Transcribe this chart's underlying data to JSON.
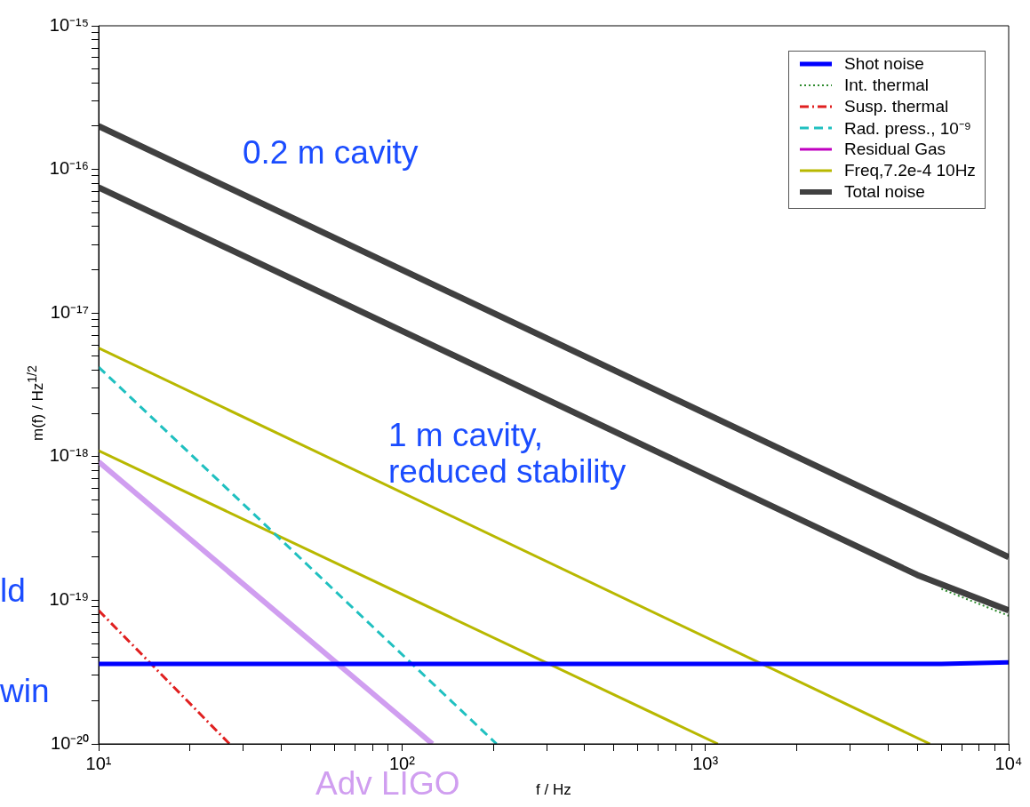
{
  "chart_data": {
    "type": "line",
    "xlabel": "f / Hz",
    "ylabel": "m(f) / Hz$^{1/2}$",
    "log": "xy",
    "grid": false,
    "legend": "top right",
    "xlim": [
      10,
      10000
    ],
    "ylim": [
      1e-20,
      1e-15
    ],
    "xticks": [
      {
        "value": 10,
        "label": "10¹"
      },
      {
        "value": 20,
        "label": null
      },
      {
        "value": 30,
        "label": null
      },
      {
        "value": 40,
        "label": null
      },
      {
        "value": 50,
        "label": null
      },
      {
        "value": 60,
        "label": null
      },
      {
        "value": 70,
        "label": null
      },
      {
        "value": 80,
        "label": null
      },
      {
        "value": 90,
        "label": null
      },
      {
        "value": 100,
        "label": "10²"
      },
      {
        "value": 200,
        "label": null
      },
      {
        "value": 300,
        "label": null
      },
      {
        "value": 400,
        "label": null
      },
      {
        "value": 500,
        "label": null
      },
      {
        "value": 600,
        "label": null
      },
      {
        "value": 700,
        "label": null
      },
      {
        "value": 800,
        "label": null
      },
      {
        "value": 900,
        "label": null
      },
      {
        "value": 1000,
        "label": "10³"
      },
      {
        "value": 2000,
        "label": null
      },
      {
        "value": 3000,
        "label": null
      },
      {
        "value": 4000,
        "label": null
      },
      {
        "value": 5000,
        "label": null
      },
      {
        "value": 6000,
        "label": null
      },
      {
        "value": 7000,
        "label": null
      },
      {
        "value": 8000,
        "label": null
      },
      {
        "value": 9000,
        "label": null
      },
      {
        "value": 10000,
        "label": "10⁴"
      }
    ],
    "yticks": [
      {
        "value": 1e-20,
        "label": "10⁻²⁰"
      },
      {
        "value": 2e-20,
        "label": null
      },
      {
        "value": 3e-20,
        "label": null
      },
      {
        "value": 4e-20,
        "label": null
      },
      {
        "value": 5e-20,
        "label": null
      },
      {
        "value": 6e-20,
        "label": null
      },
      {
        "value": 7e-20,
        "label": null
      },
      {
        "value": 8e-20,
        "label": null
      },
      {
        "value": 9e-20,
        "label": null
      },
      {
        "value": 1e-19,
        "label": "10⁻¹⁹"
      },
      {
        "value": 2e-19,
        "label": null
      },
      {
        "value": 3e-19,
        "label": null
      },
      {
        "value": 4e-19,
        "label": null
      },
      {
        "value": 5e-19,
        "label": null
      },
      {
        "value": 6e-19,
        "label": null
      },
      {
        "value": 7e-19,
        "label": null
      },
      {
        "value": 8e-19,
        "label": null
      },
      {
        "value": 9e-19,
        "label": null
      },
      {
        "value": 1e-18,
        "label": "10⁻¹⁸"
      },
      {
        "value": 2e-18,
        "label": null
      },
      {
        "value": 3e-18,
        "label": null
      },
      {
        "value": 4e-18,
        "label": null
      },
      {
        "value": 5e-18,
        "label": null
      },
      {
        "value": 6e-18,
        "label": null
      },
      {
        "value": 7e-18,
        "label": null
      },
      {
        "value": 8e-18,
        "label": null
      },
      {
        "value": 9e-18,
        "label": null
      },
      {
        "value": 1e-17,
        "label": "10⁻¹⁷"
      },
      {
        "value": 2e-17,
        "label": null
      },
      {
        "value": 3e-17,
        "label": null
      },
      {
        "value": 4e-17,
        "label": null
      },
      {
        "value": 5e-17,
        "label": null
      },
      {
        "value": 6e-17,
        "label": null
      },
      {
        "value": 7e-17,
        "label": null
      },
      {
        "value": 8e-17,
        "label": null
      },
      {
        "value": 9e-17,
        "label": null
      },
      {
        "value": 1e-16,
        "label": "10⁻¹⁶"
      },
      {
        "value": 2e-16,
        "label": null
      },
      {
        "value": 3e-16,
        "label": null
      },
      {
        "value": 4e-16,
        "label": null
      },
      {
        "value": 5e-16,
        "label": null
      },
      {
        "value": 6e-16,
        "label": null
      },
      {
        "value": 7e-16,
        "label": null
      },
      {
        "value": 8e-16,
        "label": null
      },
      {
        "value": 9e-16,
        "label": null
      },
      {
        "value": 1e-15,
        "label": "10⁻¹⁵"
      }
    ],
    "series": [
      {
        "name": "Shot noise",
        "color": "#0000ff",
        "line_style": "solid",
        "x": [
          10,
          6000,
          10000
        ],
        "values": [
          3.6e-20,
          3.6e-20,
          3.7e-20
        ]
      },
      {
        "name": "Int. thermal",
        "color": "#2e8b2e",
        "line_style": "dotted",
        "x": [
          6000,
          10000
        ],
        "values": [
          1.2e-19,
          7.8e-20
        ]
      },
      {
        "name": "Susp. thermal",
        "color": "#e02020",
        "line_style": "dashdot",
        "x": [
          10,
          27
        ],
        "values": [
          8.5e-20,
          1e-20
        ]
      },
      {
        "name": "Rad. press., 10⁻⁹",
        "color": "#20c0c0",
        "line_style": "dashed",
        "x": [
          10,
          205
        ],
        "values": [
          4.2e-18,
          1e-20
        ]
      },
      {
        "name": "Residual Gas",
        "color": "#c000c0",
        "line_style": "solid"
      },
      {
        "name": "Freq,7.2e-4 10Hz",
        "color": "#b8b800",
        "line_style": "solid",
        "x": [
          10,
          5500
        ],
        "values": [
          5.7e-18,
          1e-20
        ]
      },
      {
        "color": "#b8b800",
        "line_style": "solid",
        "x": [
          10,
          1100
        ],
        "values": [
          1.1e-18,
          1e-20
        ]
      },
      {
        "name": "Total noise",
        "color": "#404040",
        "line_style": "solid",
        "x": [
          10,
          10000
        ],
        "values": [
          2e-16,
          2e-19
        ]
      },
      {
        "color": "#404040",
        "line_style": "solid",
        "x": [
          10,
          5000,
          10000
        ],
        "values": [
          7.5e-17,
          1.5e-19,
          8.5e-20
        ]
      },
      {
        "color": "#d09ef0",
        "line_style": "solid",
        "x": [
          10,
          126
        ],
        "values": [
          9.2e-19,
          1e-20
        ]
      }
    ],
    "annotations": [
      "0.2 m cavity",
      "1 m cavity,\nreduced stability",
      "ld",
      "win",
      "Adv LIGO"
    ]
  }
}
